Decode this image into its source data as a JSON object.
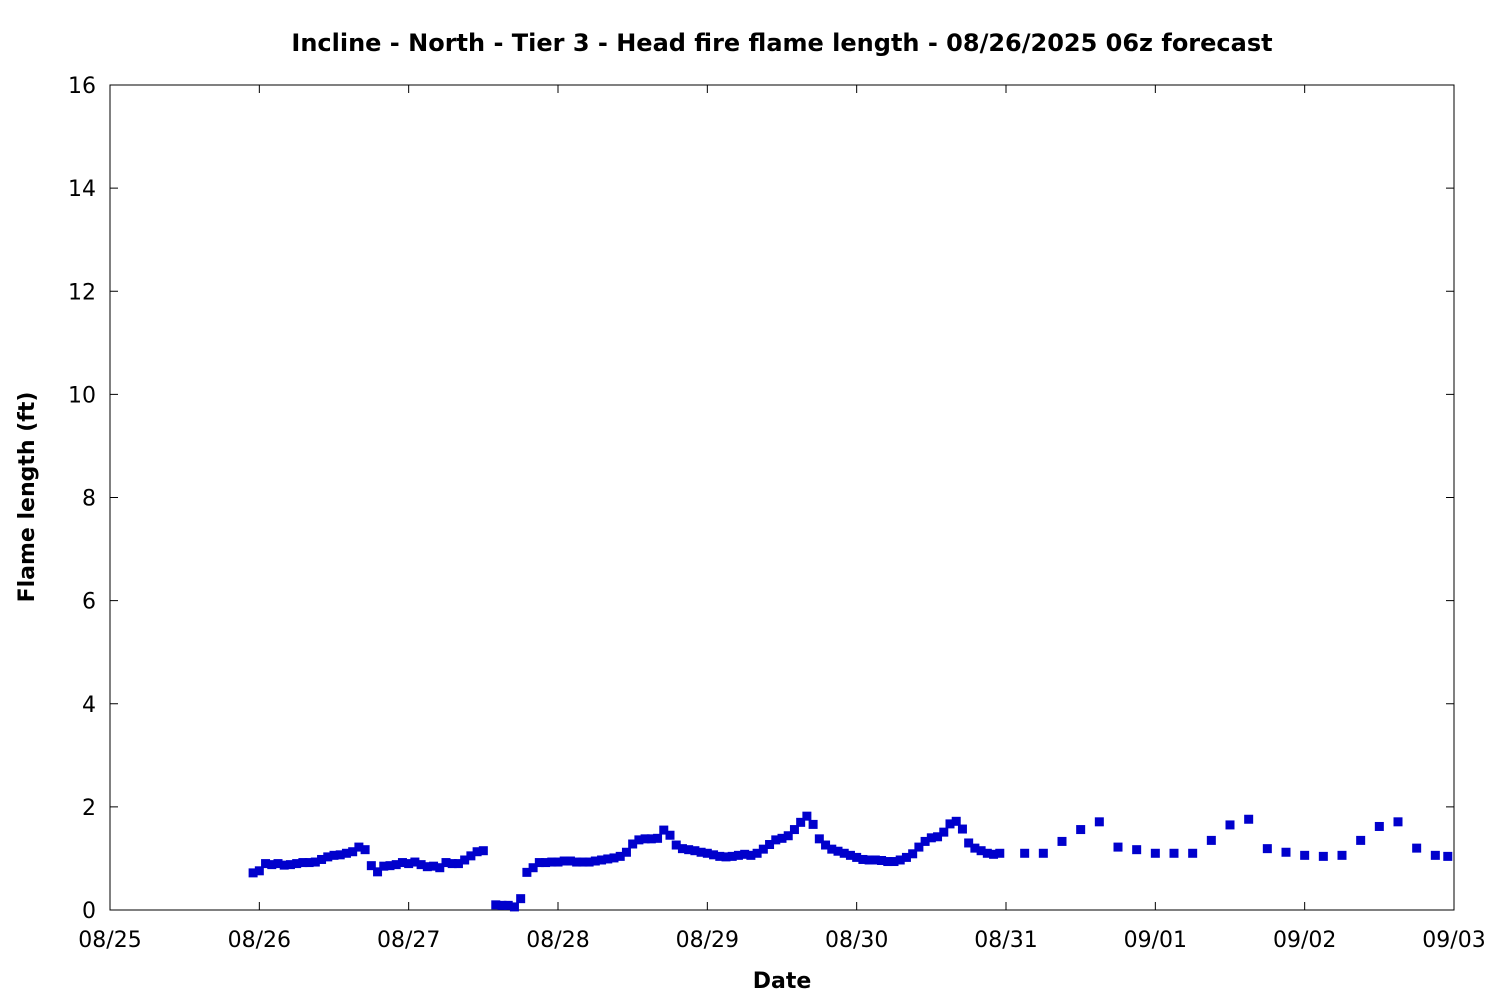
{
  "chart_data": {
    "type": "scatter",
    "title": "Incline - North - Tier 3 - Head fire flame length - 08/26/2025 06z forecast",
    "xlabel": "Date",
    "ylabel": "Flame length (ft)",
    "x_tick_labels": [
      "08/25",
      "08/26",
      "08/27",
      "08/28",
      "08/29",
      "08/30",
      "08/31",
      "09/01",
      "09/02",
      "09/03"
    ],
    "y_ticks": [
      0,
      2,
      4,
      6,
      8,
      10,
      12,
      14,
      16
    ],
    "xlim": [
      "2025-08-25 00:00",
      "2025-09-03 00:00"
    ],
    "ylim": [
      0,
      16
    ],
    "grid": false,
    "legend": "none",
    "marker": "square",
    "color": "#0000cc",
    "series": [
      {
        "x": [
          "2025-08-25 23:00",
          "2025-08-26 00:00",
          "2025-08-26 01:00",
          "2025-08-26 02:00",
          "2025-08-26 03:00",
          "2025-08-26 04:00",
          "2025-08-26 05:00",
          "2025-08-26 06:00",
          "2025-08-26 07:00",
          "2025-08-26 08:00",
          "2025-08-26 09:00",
          "2025-08-26 10:00",
          "2025-08-26 11:00",
          "2025-08-26 12:00",
          "2025-08-26 13:00",
          "2025-08-26 14:00",
          "2025-08-26 15:00",
          "2025-08-26 16:00",
          "2025-08-26 17:00",
          "2025-08-26 18:00",
          "2025-08-26 19:00",
          "2025-08-26 20:00",
          "2025-08-26 21:00",
          "2025-08-26 22:00",
          "2025-08-26 23:00",
          "2025-08-27 00:00",
          "2025-08-27 01:00",
          "2025-08-27 02:00",
          "2025-08-27 03:00",
          "2025-08-27 04:00",
          "2025-08-27 05:00",
          "2025-08-27 06:00",
          "2025-08-27 07:00",
          "2025-08-27 08:00",
          "2025-08-27 09:00",
          "2025-08-27 10:00",
          "2025-08-27 11:00",
          "2025-08-27 12:00",
          "2025-08-27 14:00",
          "2025-08-27 15:00",
          "2025-08-27 16:00",
          "2025-08-27 17:00",
          "2025-08-27 18:00",
          "2025-08-27 19:00",
          "2025-08-27 20:00",
          "2025-08-27 21:00",
          "2025-08-27 22:00",
          "2025-08-27 23:00",
          "2025-08-28 00:00",
          "2025-08-28 01:00",
          "2025-08-28 02:00",
          "2025-08-28 03:00",
          "2025-08-28 04:00",
          "2025-08-28 05:00",
          "2025-08-28 06:00",
          "2025-08-28 07:00",
          "2025-08-28 08:00",
          "2025-08-28 09:00",
          "2025-08-28 10:00",
          "2025-08-28 11:00",
          "2025-08-28 12:00",
          "2025-08-28 13:00",
          "2025-08-28 14:00",
          "2025-08-28 15:00",
          "2025-08-28 16:00",
          "2025-08-28 17:00",
          "2025-08-28 18:00",
          "2025-08-28 19:00",
          "2025-08-28 20:00",
          "2025-08-28 21:00",
          "2025-08-28 22:00",
          "2025-08-28 23:00",
          "2025-08-29 00:00",
          "2025-08-29 01:00",
          "2025-08-29 02:00",
          "2025-08-29 03:00",
          "2025-08-29 04:00",
          "2025-08-29 05:00",
          "2025-08-29 06:00",
          "2025-08-29 07:00",
          "2025-08-29 08:00",
          "2025-08-29 09:00",
          "2025-08-29 10:00",
          "2025-08-29 11:00",
          "2025-08-29 12:00",
          "2025-08-29 13:00",
          "2025-08-29 14:00",
          "2025-08-29 15:00",
          "2025-08-29 16:00",
          "2025-08-29 17:00",
          "2025-08-29 18:00",
          "2025-08-29 19:00",
          "2025-08-29 20:00",
          "2025-08-29 21:00",
          "2025-08-29 22:00",
          "2025-08-29 23:00",
          "2025-08-30 00:00",
          "2025-08-30 01:00",
          "2025-08-30 02:00",
          "2025-08-30 03:00",
          "2025-08-30 04:00",
          "2025-08-30 05:00",
          "2025-08-30 06:00",
          "2025-08-30 07:00",
          "2025-08-30 08:00",
          "2025-08-30 09:00",
          "2025-08-30 10:00",
          "2025-08-30 11:00",
          "2025-08-30 12:00",
          "2025-08-30 13:00",
          "2025-08-30 14:00",
          "2025-08-30 15:00",
          "2025-08-30 16:00",
          "2025-08-30 17:00",
          "2025-08-30 18:00",
          "2025-08-30 19:00",
          "2025-08-30 20:00",
          "2025-08-30 21:00",
          "2025-08-30 22:00",
          "2025-08-30 23:00",
          "2025-08-31 03:00",
          "2025-08-31 06:00",
          "2025-08-31 09:00",
          "2025-08-31 12:00",
          "2025-08-31 15:00",
          "2025-08-31 18:00",
          "2025-08-31 21:00",
          "2025-09-01 00:00",
          "2025-09-01 03:00",
          "2025-09-01 06:00",
          "2025-09-01 09:00",
          "2025-09-01 12:00",
          "2025-09-01 15:00",
          "2025-09-01 18:00",
          "2025-09-01 21:00",
          "2025-09-02 00:00",
          "2025-09-02 03:00",
          "2025-09-02 06:00",
          "2025-09-02 09:00",
          "2025-09-02 12:00",
          "2025-09-02 15:00",
          "2025-09-02 18:00",
          "2025-09-02 21:00",
          "2025-09-02 23:00"
        ],
        "y": [
          0.72,
          0.76,
          0.9,
          0.88,
          0.9,
          0.87,
          0.88,
          0.9,
          0.92,
          0.92,
          0.93,
          0.98,
          1.03,
          1.06,
          1.07,
          1.1,
          1.13,
          1.22,
          1.17,
          0.86,
          0.74,
          0.85,
          0.86,
          0.88,
          0.92,
          0.9,
          0.93,
          0.88,
          0.84,
          0.85,
          0.82,
          0.92,
          0.9,
          0.9,
          0.97,
          1.05,
          1.13,
          1.15,
          0.1,
          0.09,
          0.09,
          0.06,
          0.22,
          0.73,
          0.82,
          0.92,
          0.92,
          0.93,
          0.93,
          0.95,
          0.95,
          0.93,
          0.93,
          0.93,
          0.95,
          0.97,
          0.99,
          1.01,
          1.04,
          1.12,
          1.28,
          1.36,
          1.38,
          1.38,
          1.39,
          1.55,
          1.45,
          1.26,
          1.19,
          1.17,
          1.15,
          1.12,
          1.1,
          1.07,
          1.04,
          1.03,
          1.04,
          1.06,
          1.08,
          1.06,
          1.1,
          1.18,
          1.27,
          1.36,
          1.39,
          1.44,
          1.56,
          1.7,
          1.82,
          1.66,
          1.38,
          1.26,
          1.18,
          1.14,
          1.1,
          1.06,
          1.02,
          0.98,
          0.97,
          0.97,
          0.96,
          0.94,
          0.94,
          0.97,
          1.02,
          1.09,
          1.22,
          1.33,
          1.4,
          1.42,
          1.51,
          1.67,
          1.72,
          1.57,
          1.3,
          1.2,
          1.15,
          1.1,
          1.08,
          1.1,
          1.1,
          1.1,
          1.33,
          1.56,
          1.71,
          1.22,
          1.17,
          1.1,
          1.1,
          1.1,
          1.35,
          1.65,
          1.76,
          1.19,
          1.12,
          1.06,
          1.04,
          1.06,
          1.35,
          1.62,
          1.71,
          1.2,
          1.06,
          1.04
        ]
      }
    ]
  }
}
